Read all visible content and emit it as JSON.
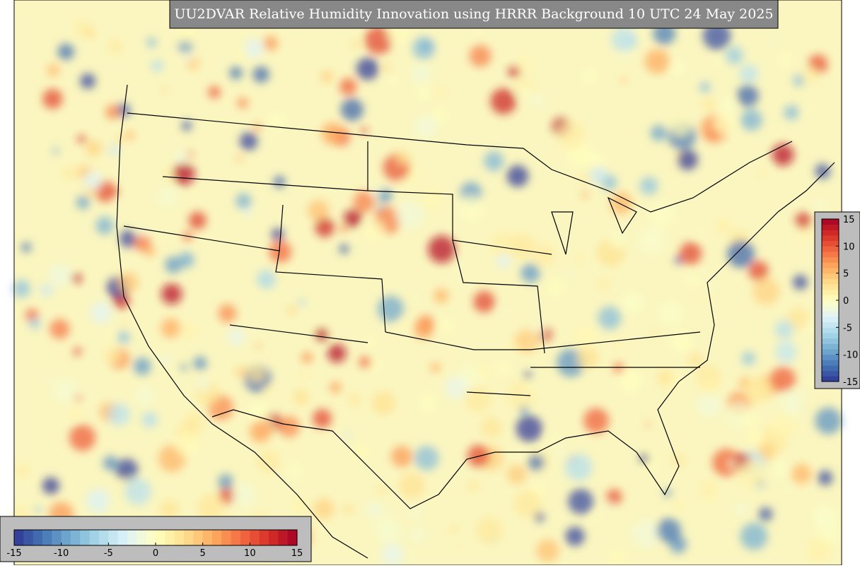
{
  "title": "UU2DVAR Relative Humidity Innovation using HRRR Background 10 UTC 24 May 2025",
  "colorbar_horizontal": {
    "lim": [
      -15,
      15
    ],
    "ticks": [
      -15,
      -10,
      -5,
      0,
      5,
      10,
      15
    ]
  },
  "colorbar_vertical": {
    "lim": [
      -15,
      15
    ],
    "ticks": [
      -15,
      -10,
      -5,
      0,
      5,
      10,
      15
    ]
  }
}
